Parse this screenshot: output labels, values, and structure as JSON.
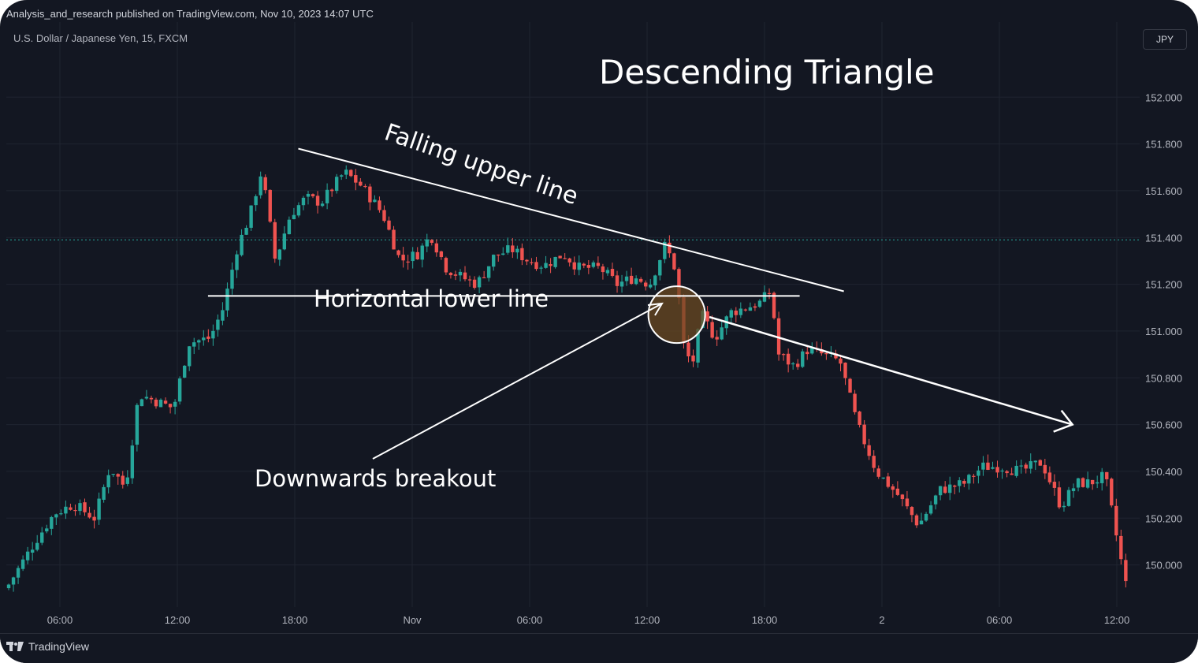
{
  "header": {
    "publisher_line": "Analysis_and_research published on TradingView.com, Nov 10, 2023 14:07 UTC",
    "symbol_line": "U.S. Dollar / Japanese Yen, 15, FXCM",
    "currency": "JPY"
  },
  "footer": {
    "logo_text": "TradingView"
  },
  "colors": {
    "background": "#131722",
    "up_candle": "#26a69a",
    "down_candle": "#ef5350",
    "annotation": "#ffffff",
    "grid": "#1f2430",
    "price_line": "#26a69a",
    "breakout_circle_fill": "#6b4a22"
  },
  "chart_data": {
    "type": "candlestick",
    "title": "Descending Triangle",
    "ylabel": "",
    "xlabel": "",
    "ylim": [
      149.82,
      152.22
    ],
    "y_ticks": [
      "152.000",
      "151.800",
      "151.600",
      "151.400",
      "151.200",
      "151.000",
      "150.800",
      "150.600",
      "150.400",
      "150.200",
      "150.000"
    ],
    "x_ticks": [
      "06:00",
      "12:00",
      "18:00",
      "Nov",
      "06:00",
      "12:00",
      "18:00",
      "2",
      "06:00",
      "12:00"
    ],
    "current_price_line": 151.39,
    "annotations": [
      {
        "text": "Falling upper line",
        "kind": "trendline"
      },
      {
        "text": "Horizontal lower line",
        "kind": "support"
      },
      {
        "text": "Downwards breakout",
        "kind": "arrow"
      }
    ],
    "trendlines": [
      {
        "name": "falling-upper-line",
        "from": [
          15.2,
          151.78
        ],
        "to": [
          43.6,
          151.17
        ]
      },
      {
        "name": "horizontal-lower-line",
        "from": [
          10.5,
          151.15
        ],
        "to": [
          41.3,
          151.15
        ]
      },
      {
        "name": "breakout-direction-arrow",
        "from": [
          36.6,
          151.06
        ],
        "to": [
          55.5,
          150.6
        ]
      }
    ],
    "breakout_point": [
      34.9,
      151.07
    ],
    "ohlc_anchors": [
      [
        0,
        149.9
      ],
      [
        1.5,
        150.1
      ],
      [
        2.5,
        150.22
      ],
      [
        3.5,
        150.26
      ],
      [
        4.6,
        150.2
      ],
      [
        5.4,
        150.42
      ],
      [
        6.2,
        150.33
      ],
      [
        6.9,
        150.73
      ],
      [
        7.8,
        150.7
      ],
      [
        8.7,
        150.67
      ],
      [
        9.5,
        150.95
      ],
      [
        10.6,
        150.97
      ],
      [
        11.3,
        151.1
      ],
      [
        12.0,
        151.35
      ],
      [
        12.7,
        151.5
      ],
      [
        13.3,
        151.69
      ],
      [
        14.0,
        151.3
      ],
      [
        14.8,
        151.5
      ],
      [
        15.6,
        151.57
      ],
      [
        16.4,
        151.55
      ],
      [
        17.6,
        151.68
      ],
      [
        18.5,
        151.62
      ],
      [
        19.6,
        151.5
      ],
      [
        20.5,
        151.3
      ],
      [
        21.4,
        151.33
      ],
      [
        22.1,
        151.41
      ],
      [
        22.9,
        151.27
      ],
      [
        23.7,
        151.23
      ],
      [
        24.5,
        151.2
      ],
      [
        25.4,
        151.32
      ],
      [
        26.3,
        151.35
      ],
      [
        27.2,
        151.3
      ],
      [
        28.0,
        151.28
      ],
      [
        29.0,
        151.33
      ],
      [
        29.8,
        151.27
      ],
      [
        30.9,
        151.27
      ],
      [
        31.8,
        151.2
      ],
      [
        32.7,
        151.23
      ],
      [
        33.5,
        151.2
      ],
      [
        34.3,
        151.37
      ],
      [
        34.9,
        151.25
      ],
      [
        35.2,
        150.95
      ],
      [
        35.7,
        150.85
      ],
      [
        36.2,
        151.07
      ],
      [
        36.9,
        150.97
      ],
      [
        37.7,
        151.08
      ],
      [
        38.5,
        151.1
      ],
      [
        39.2,
        151.12
      ],
      [
        39.8,
        151.17
      ],
      [
        40.2,
        150.9
      ],
      [
        41.0,
        150.85
      ],
      [
        41.7,
        150.92
      ],
      [
        42.5,
        150.9
      ],
      [
        43.4,
        150.87
      ],
      [
        44.3,
        150.6
      ],
      [
        45.3,
        150.4
      ],
      [
        46.4,
        150.3
      ],
      [
        47.5,
        150.17
      ],
      [
        48.6,
        150.32
      ],
      [
        49.9,
        150.35
      ],
      [
        50.8,
        150.42
      ],
      [
        51.8,
        150.42
      ],
      [
        52.8,
        150.4
      ],
      [
        53.9,
        150.44
      ],
      [
        54.9,
        150.25
      ],
      [
        55.7,
        150.35
      ],
      [
        56.4,
        150.35
      ],
      [
        57.2,
        150.38
      ],
      [
        58.0,
        150.03
      ],
      [
        58.4,
        149.87
      ]
    ]
  }
}
